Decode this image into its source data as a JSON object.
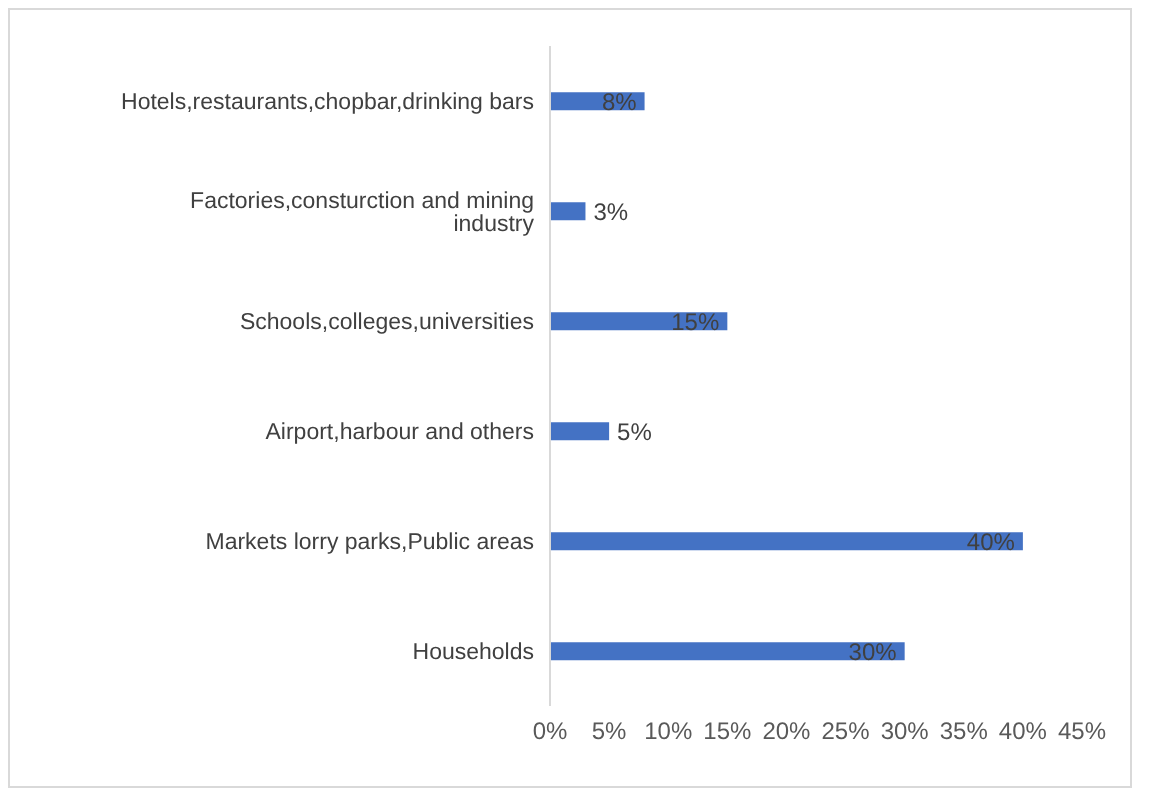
{
  "chart_data": {
    "type": "bar",
    "orientation": "horizontal",
    "categories": [
      "Hotels,restaurants,chopbar,drinking bars",
      "Factories,consturction and mining industry",
      "Schools,colleges,universities",
      "Airport,harbour and others",
      "Markets lorry parks,Public areas",
      "Households"
    ],
    "values": [
      8,
      3,
      15,
      5,
      40,
      30
    ],
    "value_labels": [
      "8%",
      "3%",
      "15%",
      "5%",
      "40%",
      "30%"
    ],
    "color": "#4472c4",
    "xlim": [
      0,
      45
    ],
    "xticks": [
      {
        "value": 0,
        "label": "0%"
      },
      {
        "value": 5,
        "label": "5%"
      },
      {
        "value": 10,
        "label": "10%"
      },
      {
        "value": 15,
        "label": "15%"
      },
      {
        "value": 20,
        "label": "20%"
      },
      {
        "value": 25,
        "label": "25%"
      },
      {
        "value": 30,
        "label": "30%"
      },
      {
        "value": 35,
        "label": "35%"
      },
      {
        "value": 40,
        "label": "40%"
      },
      {
        "value": 45,
        "label": "45%"
      }
    ],
    "grid": false,
    "legend": false
  }
}
